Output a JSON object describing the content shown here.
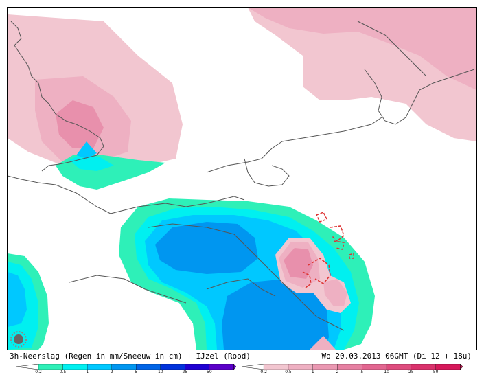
{
  "caption": {
    "left": "3h-Neerslag (Regen in mm/Sneeuw in cm) + IJzel (Rood)",
    "right": "Wo 20.03.2013 06GMT (Di 12 + 18u)"
  },
  "legend_rain": {
    "ticks": [
      "0.2",
      "0.5",
      "1",
      "2",
      "5",
      "10",
      "25",
      "50"
    ],
    "colors": [
      "#2ef0b8",
      "#00f0f0",
      "#00c8ff",
      "#0096f0",
      "#0064e6",
      "#0032dc",
      "#1e00d2",
      "#5a00c8"
    ]
  },
  "legend_sleet": {
    "ticks": [
      "0.2",
      "0.5",
      "1",
      "2",
      "5",
      "10",
      "25",
      "50"
    ],
    "colors": [
      "#f2c6d0",
      "#eeb0c2",
      "#ea98b2",
      "#e680a2",
      "#e26690",
      "#de4c7e",
      "#da326c",
      "#d6185a"
    ]
  },
  "colors": {
    "pink_light": "#f2c6d0",
    "pink_mid": "#eeb0c2",
    "pink_dark": "#e890ac",
    "aqua": "#2ef0b8",
    "cyan": "#00f0f0",
    "sky": "#00c8ff",
    "blue": "#0096f0",
    "deep_blue": "#0064e6",
    "ice_red": "#dd3333",
    "coast": "#555555"
  },
  "icons": {
    "logo": "meteo-logo-icon"
  }
}
